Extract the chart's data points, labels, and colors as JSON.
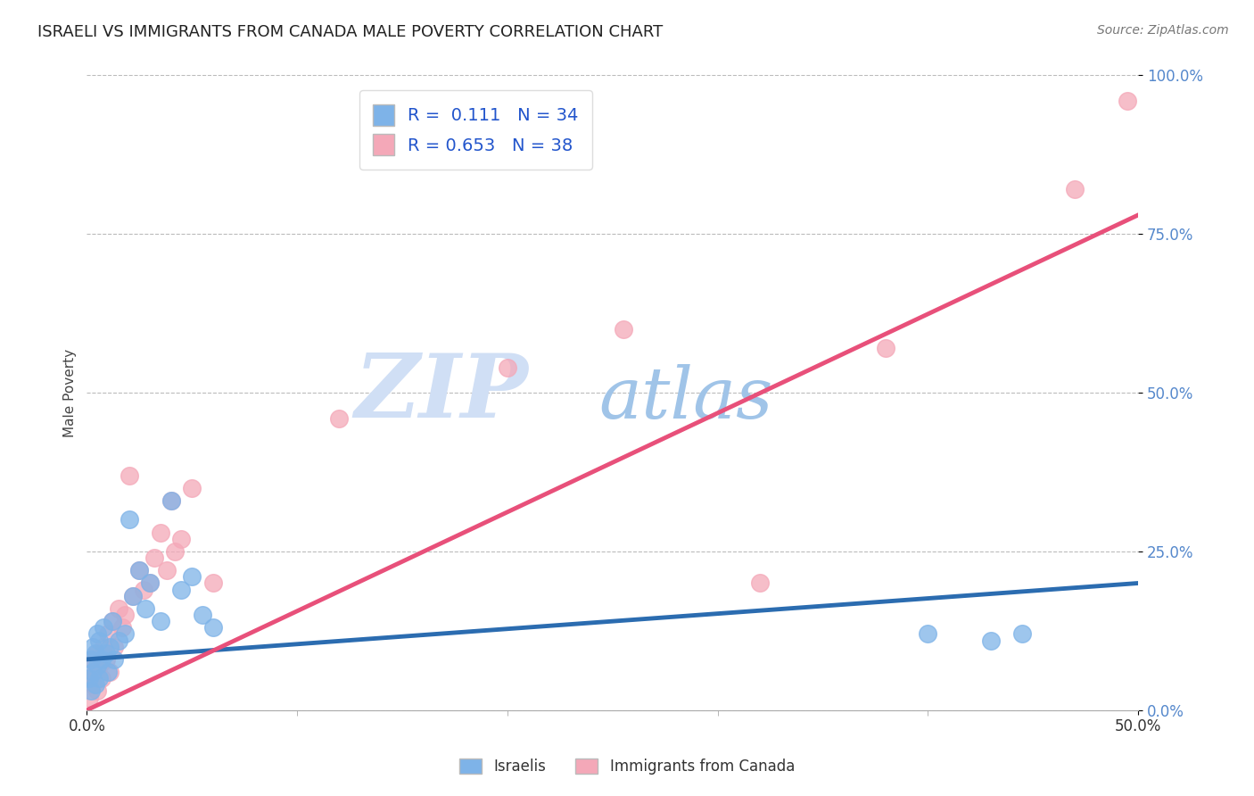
{
  "title": "ISRAELI VS IMMIGRANTS FROM CANADA MALE POVERTY CORRELATION CHART",
  "source_text": "Source: ZipAtlas.com",
  "ylabel": "Male Poverty",
  "xlim": [
    0.0,
    0.5
  ],
  "ylim": [
    0.0,
    1.0
  ],
  "xtick_labels": [
    "0.0%",
    "50.0%"
  ],
  "ytick_labels": [
    "0.0%",
    "25.0%",
    "50.0%",
    "75.0%",
    "100.0%"
  ],
  "ytick_vals": [
    0.0,
    0.25,
    0.5,
    0.75,
    1.0
  ],
  "xtick_vals": [
    0.0,
    0.5
  ],
  "R_israelis": 0.111,
  "N_israelis": 34,
  "R_canada": 0.653,
  "N_canada": 38,
  "color_israelis": "#7EB3E8",
  "color_canada": "#F4A8B8",
  "line_color_israelis": "#2B6CB0",
  "line_color_canada": "#E8507A",
  "legend_label_israelis": "Israelis",
  "legend_label_canada": "Immigrants from Canada",
  "watermark_zip": "ZIP",
  "watermark_atlas": "atlas",
  "watermark_color_zip": "#C8D8F0",
  "watermark_color_atlas": "#A8C8E8",
  "background_color": "#FFFFFF",
  "grid_color": "#BBBBBB",
  "tick_color": "#5588CC",
  "israelis_x": [
    0.001,
    0.002,
    0.002,
    0.003,
    0.003,
    0.004,
    0.004,
    0.005,
    0.005,
    0.006,
    0.006,
    0.007,
    0.008,
    0.009,
    0.01,
    0.011,
    0.012,
    0.013,
    0.015,
    0.018,
    0.02,
    0.022,
    0.025,
    0.028,
    0.03,
    0.035,
    0.04,
    0.045,
    0.05,
    0.055,
    0.06,
    0.4,
    0.43,
    0.445
  ],
  "israelis_y": [
    0.05,
    0.03,
    0.08,
    0.06,
    0.1,
    0.04,
    0.09,
    0.07,
    0.12,
    0.05,
    0.11,
    0.08,
    0.13,
    0.09,
    0.06,
    0.1,
    0.14,
    0.08,
    0.11,
    0.12,
    0.3,
    0.18,
    0.22,
    0.16,
    0.2,
    0.14,
    0.33,
    0.19,
    0.21,
    0.15,
    0.13,
    0.12,
    0.11,
    0.12
  ],
  "canada_x": [
    0.001,
    0.002,
    0.003,
    0.003,
    0.004,
    0.005,
    0.005,
    0.006,
    0.007,
    0.008,
    0.009,
    0.01,
    0.011,
    0.012,
    0.013,
    0.015,
    0.017,
    0.018,
    0.02,
    0.022,
    0.025,
    0.027,
    0.03,
    0.032,
    0.035,
    0.038,
    0.04,
    0.042,
    0.045,
    0.05,
    0.06,
    0.12,
    0.2,
    0.255,
    0.32,
    0.38,
    0.47,
    0.495
  ],
  "canada_y": [
    0.02,
    0.05,
    0.04,
    0.08,
    0.06,
    0.03,
    0.09,
    0.07,
    0.05,
    0.1,
    0.08,
    0.12,
    0.06,
    0.14,
    0.1,
    0.16,
    0.13,
    0.15,
    0.37,
    0.18,
    0.22,
    0.19,
    0.2,
    0.24,
    0.28,
    0.22,
    0.33,
    0.25,
    0.27,
    0.35,
    0.2,
    0.46,
    0.54,
    0.6,
    0.2,
    0.57,
    0.82,
    0.96
  ],
  "blue_line_x0": 0.0,
  "blue_line_y0": 0.08,
  "blue_line_x1": 0.5,
  "blue_line_y1": 0.2,
  "pink_line_x0": 0.0,
  "pink_line_y0": 0.0,
  "pink_line_x1": 0.5,
  "pink_line_y1": 0.78
}
